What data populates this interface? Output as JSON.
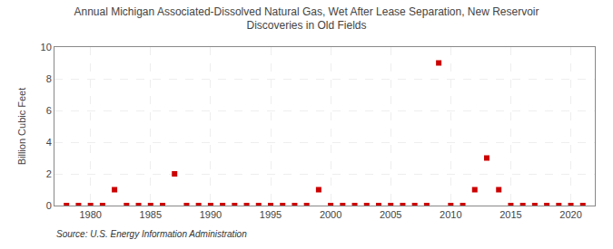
{
  "chart_data": {
    "type": "scatter",
    "title": "Annual Michigan Associated-Dissolved Natural Gas, Wet After Lease Separation, New Reservoir\nDiscoveries in Old Fields",
    "ylabel": "Billion Cubic Feet",
    "annotations": [
      "Source: U.S. Energy Information Administration"
    ],
    "x": [
      1978,
      1979,
      1980,
      1981,
      1982,
      1983,
      1984,
      1985,
      1986,
      1987,
      1988,
      1989,
      1990,
      1991,
      1992,
      1993,
      1994,
      1995,
      1996,
      1997,
      1998,
      1999,
      2000,
      2001,
      2002,
      2003,
      2004,
      2005,
      2006,
      2007,
      2008,
      2009,
      2010,
      2011,
      2012,
      2013,
      2014,
      2015,
      2016,
      2017,
      2018,
      2019,
      2020,
      2021
    ],
    "values": [
      0.0,
      0.0,
      0.0,
      0.0,
      1.0,
      0.0,
      0.0,
      0.0,
      0.0,
      2.0,
      0.0,
      0.0,
      0.0,
      0.0,
      0.0,
      0.0,
      0.0,
      0.0,
      0.0,
      0.0,
      0.0,
      1.0,
      0.0,
      0.0,
      0.0,
      0.0,
      0.0,
      0.0,
      0.0,
      0.0,
      0.0,
      9.0,
      0.0,
      0.0,
      1.0,
      3.0,
      1.0,
      0.0,
      0.0,
      0.0,
      0.0,
      0.0,
      0.0,
      0.0
    ],
    "color": "#cc0000",
    "marker": "square",
    "xlim": [
      1977,
      2022
    ],
    "xticks": [
      1980,
      1985,
      1990,
      1995,
      2000,
      2005,
      2010,
      2015,
      2020
    ],
    "ylim": [
      0,
      10
    ],
    "yticks": [
      0,
      2,
      4,
      6,
      8,
      10
    ],
    "grid": true
  }
}
